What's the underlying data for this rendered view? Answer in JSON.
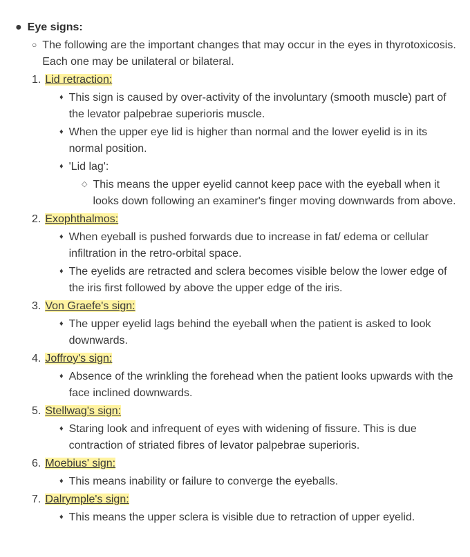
{
  "colors": {
    "text": "#3a3a3a",
    "bold_text": "#2d2d2d",
    "highlight_bg": "#fff3a0",
    "background": "#ffffff"
  },
  "typography": {
    "font_family": "Arial, Helvetica, sans-serif",
    "font_size_pt": 12,
    "line_height": 1.5
  },
  "heading": "Eye signs:",
  "intro": "The following are the important changes that may occur in the eyes in thyrotoxicosis. Each one may be unilateral or bilateral.",
  "signs": [
    {
      "num": "1.",
      "title": "Lid retraction:",
      "points": [
        {
          "text": "This sign is caused by over-activity of the involuntary (smooth muscle) part of the levator palpebrae superioris muscle."
        },
        {
          "text": "When the upper eye lid is higher than normal and the lower eyelid is in its normal position."
        },
        {
          "text": "'Lid lag':",
          "sub": [
            {
              "text": "This means the upper eyelid cannot keep pace with the eyeball when it looks down following an examiner's finger moving downwards from above."
            }
          ]
        }
      ]
    },
    {
      "num": "2.",
      "title": "Exophthalmos:",
      "points": [
        {
          "text": "When eyeball is pushed forwards due to increase in fat/ edema or cellular infiltration in the retro-orbital space."
        },
        {
          "text": "The eyelids are retracted and sclera becomes visible below the lower edge of the iris first followed by above the upper edge of the iris."
        }
      ]
    },
    {
      "num": "3.",
      "title": "Von Graefe's sign:",
      "points": [
        {
          "text": "The upper eyelid lags behind the eyeball when the patient is asked to look downwards."
        }
      ]
    },
    {
      "num": "4.",
      "title": "Joffroy's sign:",
      "points": [
        {
          "text": "Absence of the wrinkling the forehead when the patient looks upwards with the face inclined downwards."
        }
      ]
    },
    {
      "num": "5.",
      "title": "Stellwag's sign:",
      "points": [
        {
          "text": "Staring look and infrequent of eyes with widening of fissure. This is  due contraction of striated fibres of levator palpebrae superioris."
        }
      ]
    },
    {
      "num": "6.",
      "title": "Moebius' sign:",
      "points": [
        {
          "text": "This means inability or failure to converge the eyeballs."
        }
      ]
    },
    {
      "num": "7.",
      "title": "Dalrymple's sign:",
      "points": [
        {
          "text": "This means the upper sclera is visible due to retraction of upper eyelid."
        }
      ]
    }
  ]
}
